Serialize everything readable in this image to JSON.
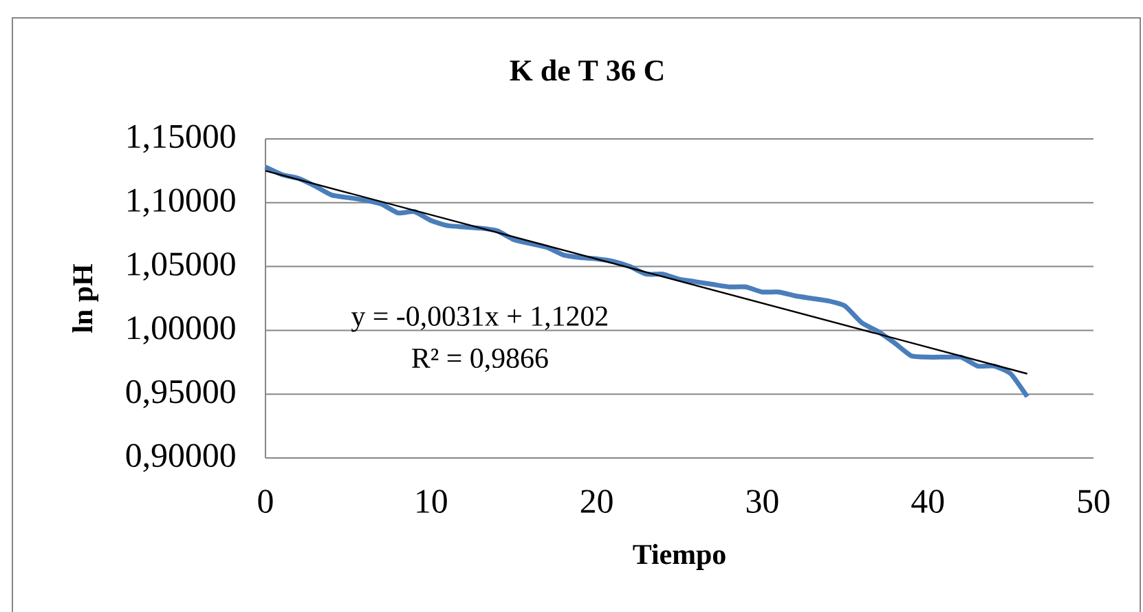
{
  "chart_data": {
    "type": "line",
    "title": "K de T 36   C",
    "xlabel": "Tiempo",
    "ylabel": "ln pH",
    "xlim": [
      0,
      50
    ],
    "xticks": [
      0,
      10,
      20,
      30,
      40,
      50
    ],
    "ylim": [
      0.9,
      1.15
    ],
    "yticks": [
      {
        "value": 0.9,
        "label": "0,90000"
      },
      {
        "value": 0.95,
        "label": "0,95000"
      },
      {
        "value": 1.0,
        "label": "1,00000"
      },
      {
        "value": 1.05,
        "label": "1,05000"
      },
      {
        "value": 1.1,
        "label": "1,10000"
      },
      {
        "value": 1.15,
        "label": "1,15000"
      }
    ],
    "grid": "y",
    "marker": "none",
    "line_style": "solid",
    "series": [
      {
        "color": "#4a7ebb",
        "x": [
          0,
          1,
          2,
          3,
          4,
          5,
          6,
          7,
          8,
          9,
          10,
          11,
          12,
          13,
          14,
          15,
          16,
          17,
          18,
          19,
          20,
          21,
          22,
          23,
          24,
          25,
          26,
          27,
          28,
          29,
          30,
          31,
          32,
          33,
          34,
          35,
          36,
          37,
          38,
          39,
          40,
          41,
          42,
          43,
          44,
          45,
          46
        ],
        "values": [
          1.128,
          1.122,
          1.119,
          1.113,
          1.106,
          1.104,
          1.102,
          1.099,
          1.092,
          1.093,
          1.086,
          1.082,
          1.081,
          1.08,
          1.078,
          1.071,
          1.068,
          1.065,
          1.059,
          1.057,
          1.056,
          1.054,
          1.05,
          1.044,
          1.044,
          1.04,
          1.038,
          1.036,
          1.034,
          1.034,
          1.03,
          1.03,
          1.027,
          1.025,
          1.023,
          1.019,
          1.006,
          0.999,
          0.99,
          0.98,
          0.979,
          0.979,
          0.979,
          0.972,
          0.972,
          0.966,
          0.948
        ]
      },
      {
        "color": "#000000",
        "x": [
          0,
          46
        ],
        "values": [
          1.125,
          0.966
        ]
      }
    ],
    "annotations": [
      "y = -0,0031x + 1,1202",
      "R² = 0,9866"
    ]
  }
}
